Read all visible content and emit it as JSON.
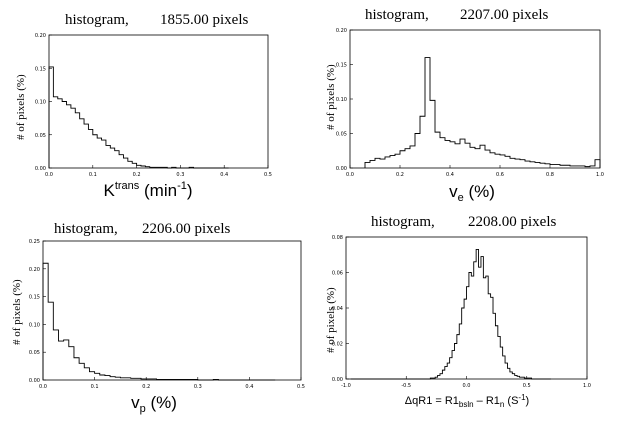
{
  "chart_data": [
    {
      "type": "histogram",
      "title": "histogram,",
      "pixel_count": "1855.00 pixels",
      "ylabel": "# of pixels (%)",
      "xlabel": "K",
      "xlabel_sup": "trans",
      "xlabel_mid": " (min",
      "xlabel_sup2": "-1",
      "xlabel_end": ")",
      "xlim": [
        0.0,
        0.5
      ],
      "ylim": [
        0.0,
        0.2
      ],
      "xticks": [
        "0.0",
        "0.1",
        "0.2",
        "0.3",
        "0.4",
        "0.5"
      ],
      "yticks": [
        "0.00",
        "0.05",
        "0.10",
        "0.15",
        "0.20"
      ],
      "bin_width": 0.01,
      "x": [
        0.0,
        0.01,
        0.02,
        0.03,
        0.04,
        0.05,
        0.06,
        0.07,
        0.08,
        0.09,
        0.1,
        0.11,
        0.12,
        0.13,
        0.14,
        0.15,
        0.16,
        0.17,
        0.18,
        0.19,
        0.2,
        0.21,
        0.22,
        0.23,
        0.24,
        0.25,
        0.26,
        0.27,
        0.28,
        0.29,
        0.3,
        0.31,
        0.32,
        0.33,
        0.34,
        0.35,
        0.36,
        0.37,
        0.38,
        0.39,
        0.4
      ],
      "values": [
        0.152,
        0.107,
        0.104,
        0.1,
        0.095,
        0.09,
        0.083,
        0.074,
        0.066,
        0.058,
        0.05,
        0.045,
        0.042,
        0.034,
        0.03,
        0.026,
        0.02,
        0.015,
        0.01,
        0.007,
        0.004,
        0.003,
        0.002,
        0.001,
        0.001,
        0.001,
        0.001,
        0.0,
        0.001,
        0.0,
        0.0,
        0.0,
        0.001,
        0.0,
        0.0,
        0.0,
        0.0,
        0.0,
        0.0,
        0.0,
        0.0
      ]
    },
    {
      "type": "histogram",
      "title": "histogram,",
      "pixel_count": "2207.00 pixels",
      "ylabel": "# of pixels (%)",
      "xlabel": "v",
      "xlabel_sub": "e",
      "xlabel_end": " (%)",
      "xlim": [
        0.0,
        1.0
      ],
      "ylim": [
        0.0,
        0.2
      ],
      "xticks": [
        "0.0",
        "0.2",
        "0.4",
        "0.6",
        "0.8",
        "1.0"
      ],
      "yticks": [
        "0.00",
        "0.05",
        "0.10",
        "0.15",
        "0.20"
      ],
      "bin_width": 0.02,
      "x": [
        0.06,
        0.08,
        0.1,
        0.12,
        0.14,
        0.16,
        0.18,
        0.2,
        0.22,
        0.24,
        0.26,
        0.28,
        0.3,
        0.32,
        0.34,
        0.36,
        0.38,
        0.4,
        0.42,
        0.44,
        0.46,
        0.48,
        0.5,
        0.52,
        0.54,
        0.56,
        0.58,
        0.6,
        0.62,
        0.64,
        0.66,
        0.68,
        0.7,
        0.72,
        0.74,
        0.76,
        0.78,
        0.8,
        0.82,
        0.84,
        0.86,
        0.88,
        0.9,
        0.92,
        0.94,
        0.96,
        0.98
      ],
      "values": [
        0.008,
        0.011,
        0.014,
        0.013,
        0.016,
        0.018,
        0.02,
        0.025,
        0.028,
        0.032,
        0.05,
        0.075,
        0.16,
        0.098,
        0.052,
        0.044,
        0.04,
        0.038,
        0.035,
        0.042,
        0.036,
        0.03,
        0.028,
        0.033,
        0.026,
        0.022,
        0.02,
        0.019,
        0.017,
        0.014,
        0.013,
        0.012,
        0.01,
        0.009,
        0.008,
        0.007,
        0.006,
        0.005,
        0.005,
        0.004,
        0.004,
        0.003,
        0.003,
        0.003,
        0.002,
        0.003,
        0.012
      ]
    },
    {
      "type": "histogram",
      "title": "histogram,",
      "pixel_count": "2206.00 pixels",
      "ylabel": "# of pixels (%)",
      "xlabel": "v",
      "xlabel_sub": "p",
      "xlabel_end": " (%)",
      "xlim": [
        0.0,
        0.5
      ],
      "ylim": [
        0.0,
        0.25
      ],
      "xticks": [
        "0.0",
        "0.1",
        "0.2",
        "0.3",
        "0.4",
        "0.5"
      ],
      "yticks": [
        "0.00",
        "0.05",
        "0.10",
        "0.15",
        "0.20",
        "0.25"
      ],
      "bin_width": 0.01,
      "x": [
        0.0,
        0.01,
        0.02,
        0.03,
        0.04,
        0.05,
        0.06,
        0.07,
        0.08,
        0.09,
        0.1,
        0.11,
        0.12,
        0.13,
        0.14,
        0.15,
        0.16,
        0.17,
        0.18,
        0.19,
        0.2,
        0.21,
        0.22,
        0.23,
        0.24,
        0.25,
        0.26,
        0.27,
        0.28,
        0.29,
        0.3,
        0.31,
        0.32,
        0.33,
        0.34,
        0.35,
        0.36,
        0.37,
        0.38,
        0.39,
        0.4,
        0.41,
        0.42,
        0.43,
        0.44
      ],
      "values": [
        0.21,
        0.14,
        0.09,
        0.07,
        0.072,
        0.06,
        0.04,
        0.03,
        0.022,
        0.015,
        0.012,
        0.009,
        0.008,
        0.006,
        0.005,
        0.004,
        0.004,
        0.003,
        0.003,
        0.002,
        0.002,
        0.002,
        0.001,
        0.001,
        0.001,
        0.001,
        0.001,
        0.001,
        0.001,
        0.001,
        0.0,
        0.0,
        0.0,
        0.001,
        0.0,
        0.0,
        0.0,
        0.0,
        0.0,
        0.0,
        0.0,
        0.0,
        0.0,
        0.0,
        0.0
      ]
    },
    {
      "type": "histogram",
      "title": "histogram,",
      "pixel_count": "2208.00 pixels",
      "ylabel": "# of pixels (%)",
      "xlabel": "ΔqR1 = R1",
      "xlabel_sub": "bsln",
      "xlabel_mid": " – R1",
      "xlabel_sub2": "n",
      "xlabel_mid2": " (S",
      "xlabel_sup2": "-1",
      "xlabel_end": ")",
      "xlim": [
        -1.0,
        1.0
      ],
      "ylim": [
        0.0,
        0.08
      ],
      "xticks": [
        "-1.0",
        "-0.5",
        "0.0",
        "0.5",
        "1.0"
      ],
      "yticks": [
        "0.00",
        "0.02",
        "0.04",
        "0.06",
        "0.08"
      ],
      "bin_width": 0.02,
      "x": [
        -0.96,
        -0.94,
        -0.92,
        -0.9,
        -0.88,
        -0.86,
        -0.84,
        -0.82,
        -0.8,
        -0.78,
        -0.76,
        -0.74,
        -0.72,
        -0.7,
        -0.68,
        -0.66,
        -0.64,
        -0.62,
        -0.6,
        -0.58,
        -0.56,
        -0.54,
        -0.52,
        -0.5,
        -0.48,
        -0.46,
        -0.44,
        -0.42,
        -0.4,
        -0.38,
        -0.36,
        -0.34,
        -0.32,
        -0.3,
        -0.28,
        -0.26,
        -0.24,
        -0.22,
        -0.2,
        -0.18,
        -0.16,
        -0.14,
        -0.12,
        -0.1,
        -0.08,
        -0.06,
        -0.04,
        -0.02,
        0.0,
        0.02,
        0.04,
        0.06,
        0.08,
        0.1,
        0.12,
        0.14,
        0.16,
        0.18,
        0.2,
        0.22,
        0.24,
        0.26,
        0.28,
        0.3,
        0.32,
        0.34,
        0.36,
        0.38,
        0.4,
        0.42,
        0.44,
        0.46,
        0.48,
        0.5,
        0.52,
        0.54,
        0.56,
        0.58,
        0.6,
        0.62,
        0.64,
        0.66,
        0.68
      ],
      "values": [
        0.0,
        0.0,
        0.0,
        0.0,
        0.0,
        0.0,
        0.0,
        0.0,
        0.0,
        0.0,
        0.0,
        0.0,
        0.0,
        0.0,
        0.0,
        0.0,
        0.0,
        0.0,
        0.0,
        0.0,
        0.0,
        0.0,
        0.0,
        0.0,
        0.0,
        0.0,
        0.0,
        0.0,
        0.0,
        0.0,
        0.0,
        0.0,
        0.0,
        0.0005,
        0.0005,
        0.001,
        0.002,
        0.003,
        0.005,
        0.007,
        0.009,
        0.012,
        0.016,
        0.02,
        0.025,
        0.031,
        0.04,
        0.045,
        0.052,
        0.06,
        0.058,
        0.066,
        0.073,
        0.063,
        0.069,
        0.057,
        0.058,
        0.048,
        0.046,
        0.037,
        0.03,
        0.024,
        0.018,
        0.013,
        0.009,
        0.006,
        0.004,
        0.003,
        0.002,
        0.0015,
        0.001,
        0.001,
        0.0005,
        0.0005,
        0.0005,
        0.0,
        0.0,
        0.0,
        0.0,
        0.0,
        0.0,
        0.0,
        0.0
      ]
    }
  ]
}
